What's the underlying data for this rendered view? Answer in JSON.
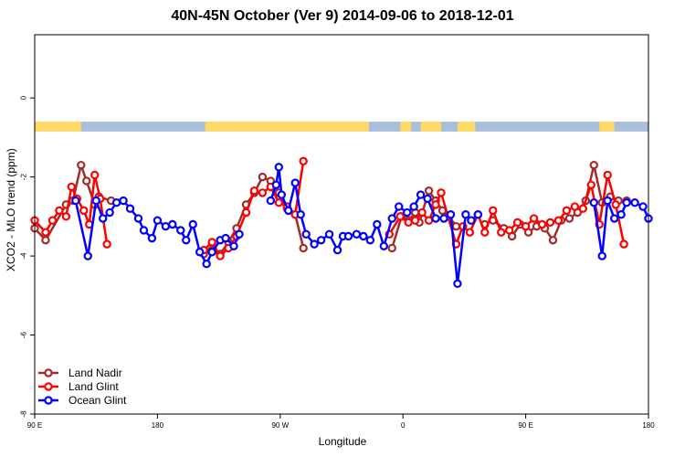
{
  "chart_data": {
    "type": "line",
    "title": "40N-45N October (Ver 9)   2014-09-06 to 2018-12-01",
    "xlabel": "Longitude",
    "ylabel": "XCO2 - MLO trend (ppm)",
    "ylim": [
      -8,
      1.6
    ],
    "x_ticks": [
      {
        "label": "90 E",
        "lon": 90
      },
      {
        "label": "180",
        "lon": 180
      },
      {
        "label": "90 W",
        "lon": 270
      },
      {
        "label": "0",
        "lon": 360
      },
      {
        "label": "90 E",
        "lon": 450
      },
      {
        "label": "180",
        "lon": 540
      }
    ],
    "y_ticks": [
      0,
      -2,
      -4,
      -6,
      -8
    ],
    "xlim": [
      90,
      540
    ],
    "surface_strip": {
      "land_color": "#FFD966",
      "ocean_color": "#A8BEDC"
    },
    "legend_position": "bottom-left",
    "series": [
      {
        "name": "Land Nadir",
        "color": "#A52A2A",
        "points": [
          [
            90,
            -3.3
          ],
          [
            98,
            -3.6
          ],
          [
            113,
            -2.7
          ],
          [
            118,
            -2.6
          ],
          [
            124,
            -1.7
          ],
          [
            128,
            -2.1
          ],
          [
            134,
            -2.7
          ],
          [
            137,
            -2.5
          ],
          [
            146,
            -2.6
          ],
          [
            214,
            -3.95
          ],
          [
            220,
            -3.85
          ],
          [
            226,
            -3.95
          ],
          [
            232,
            -3.65
          ],
          [
            238,
            -3.3
          ],
          [
            245,
            -2.7
          ],
          [
            251,
            -2.4
          ],
          [
            257,
            -2.0
          ],
          [
            263,
            -2.1
          ],
          [
            269,
            -2.4
          ],
          [
            275,
            -2.8
          ],
          [
            281,
            -2.95
          ],
          [
            287,
            -3.8
          ],
          [
            352,
            -3.8
          ],
          [
            359,
            -3.0
          ],
          [
            364,
            -3.1
          ],
          [
            369,
            -2.9
          ],
          [
            372,
            -3.15
          ],
          [
            379,
            -2.35
          ],
          [
            384,
            -2.6
          ],
          [
            389,
            -2.85
          ],
          [
            394,
            -3.0
          ],
          [
            399,
            -3.25
          ],
          [
            420,
            -3.2
          ],
          [
            426,
            -3.1
          ],
          [
            434,
            -3.3
          ],
          [
            440,
            -3.5
          ],
          [
            446,
            -3.2
          ],
          [
            452,
            -3.4
          ],
          [
            458,
            -3.25
          ],
          [
            464,
            -3.3
          ],
          [
            470,
            -3.6
          ],
          [
            476,
            -3.1
          ],
          [
            482,
            -3.05
          ],
          [
            488,
            -2.9
          ],
          [
            494,
            -2.6
          ],
          [
            500,
            -1.7
          ],
          [
            506,
            -2.65
          ],
          [
            512,
            -2.5
          ],
          [
            518,
            -2.6
          ],
          [
            524,
            -2.6
          ]
        ]
      },
      {
        "name": "Land Glint",
        "color": "#FF0000",
        "points": [
          [
            90,
            -3.1
          ],
          [
            98,
            -3.4
          ],
          [
            103,
            -3.1
          ],
          [
            108,
            -2.85
          ],
          [
            113,
            -3.0
          ],
          [
            117,
            -2.25
          ],
          [
            121,
            -2.55
          ],
          [
            126,
            -2.85
          ],
          [
            130,
            -3.2
          ],
          [
            134,
            -1.95
          ],
          [
            138,
            -2.55
          ],
          [
            143,
            -3.7
          ],
          [
            214,
            -3.85
          ],
          [
            220,
            -3.65
          ],
          [
            226,
            -4.0
          ],
          [
            232,
            -3.8
          ],
          [
            238,
            -3.5
          ],
          [
            245,
            -2.9
          ],
          [
            251,
            -2.35
          ],
          [
            257,
            -2.4
          ],
          [
            263,
            -2.25
          ],
          [
            269,
            -2.65
          ],
          [
            275,
            -2.75
          ],
          [
            281,
            -2.95
          ],
          [
            287,
            -1.6
          ],
          [
            350,
            -3.45
          ],
          [
            358,
            -3.0
          ],
          [
            364,
            -3.15
          ],
          [
            369,
            -3.1
          ],
          [
            374,
            -2.9
          ],
          [
            379,
            -3.1
          ],
          [
            384,
            -2.7
          ],
          [
            388,
            -2.4
          ],
          [
            393,
            -3.0
          ],
          [
            399,
            -3.7
          ],
          [
            404,
            -3.25
          ],
          [
            409,
            -3.4
          ],
          [
            415,
            -2.95
          ],
          [
            420,
            -3.4
          ],
          [
            426,
            -2.85
          ],
          [
            432,
            -3.4
          ],
          [
            438,
            -3.35
          ],
          [
            444,
            -3.15
          ],
          [
            450,
            -3.25
          ],
          [
            456,
            -3.05
          ],
          [
            462,
            -3.2
          ],
          [
            468,
            -3.15
          ],
          [
            474,
            -3.1
          ],
          [
            480,
            -2.85
          ],
          [
            486,
            -2.75
          ],
          [
            492,
            -2.8
          ],
          [
            498,
            -2.2
          ],
          [
            504,
            -3.2
          ],
          [
            510,
            -1.95
          ],
          [
            516,
            -2.7
          ],
          [
            522,
            -3.7
          ]
        ]
      },
      {
        "name": "Ocean Glint",
        "color": "#0000FF",
        "points": [
          [
            120,
            -2.6
          ],
          [
            129,
            -4.0
          ],
          [
            135,
            -2.6
          ],
          [
            140,
            -3.05
          ],
          [
            145,
            -2.9
          ],
          [
            150,
            -2.65
          ],
          [
            155,
            -2.6
          ],
          [
            160,
            -2.8
          ],
          [
            166,
            -3.05
          ],
          [
            170,
            -3.35
          ],
          [
            176,
            -3.55
          ],
          [
            180,
            -3.1
          ],
          [
            186,
            -3.25
          ],
          [
            191,
            -3.2
          ],
          [
            197,
            -3.35
          ],
          [
            201,
            -3.6
          ],
          [
            206,
            -3.2
          ],
          [
            211,
            -3.9
          ],
          [
            216,
            -4.2
          ],
          [
            220,
            -3.9
          ],
          [
            226,
            -3.6
          ],
          [
            230,
            -3.55
          ],
          [
            236,
            -3.75
          ],
          [
            240,
            -3.45
          ],
          [
            263,
            -2.6
          ],
          [
            267,
            -2.2
          ],
          [
            269,
            -1.75
          ],
          [
            271,
            -2.45
          ],
          [
            276,
            -2.85
          ],
          [
            281,
            -2.15
          ],
          [
            285,
            -2.95
          ],
          [
            289,
            -3.45
          ],
          [
            295,
            -3.7
          ],
          [
            300,
            -3.6
          ],
          [
            306,
            -3.45
          ],
          [
            312,
            -3.85
          ],
          [
            316,
            -3.5
          ],
          [
            320,
            -3.5
          ],
          [
            326,
            -3.45
          ],
          [
            331,
            -3.5
          ],
          [
            336,
            -3.6
          ],
          [
            341,
            -3.2
          ],
          [
            346,
            -3.75
          ],
          [
            352,
            -3.05
          ],
          [
            357,
            -2.75
          ],
          [
            363,
            -2.9
          ],
          [
            368,
            -2.75
          ],
          [
            373,
            -2.45
          ],
          [
            378,
            -2.55
          ],
          [
            384,
            -3.05
          ],
          [
            390,
            -3.05
          ],
          [
            395,
            -2.95
          ],
          [
            400,
            -4.7
          ],
          [
            406,
            -2.95
          ],
          [
            410,
            -3.1
          ],
          [
            415,
            -2.95
          ],
          [
            500,
            -2.65
          ],
          [
            506,
            -4.0
          ],
          [
            510,
            -2.6
          ],
          [
            515,
            -3.05
          ],
          [
            520,
            -2.95
          ],
          [
            524,
            -2.65
          ],
          [
            530,
            -2.65
          ],
          [
            536,
            -2.75
          ],
          [
            540,
            -3.05
          ]
        ]
      }
    ]
  }
}
